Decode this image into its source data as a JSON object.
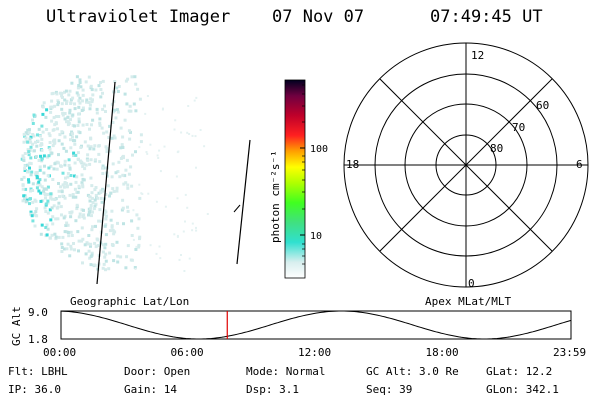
{
  "header": {
    "instrument": "Ultraviolet Imager",
    "date": "07 Nov 07",
    "time": "07:49:45 UT"
  },
  "colorbar": {
    "label": "photon cm⁻²s⁻¹",
    "ticks": [
      "100",
      "10"
    ]
  },
  "polar": {
    "mlt_labels": {
      "top": "12",
      "left": "18",
      "right": "6",
      "bottom": "0"
    },
    "lat_labels": [
      "60",
      "70",
      "80"
    ]
  },
  "orbit": {
    "ylabel": "GC Alt",
    "y_ticks": [
      "9.0",
      "1.8"
    ],
    "left_title": "Geographic Lat/Lon",
    "right_title": "Apex MLat/MLT",
    "x_ticks": [
      "00:00",
      "06:00",
      "12:00",
      "18:00",
      "23:59"
    ],
    "current_time_fraction": 0.326,
    "colors": {
      "marker": "#e00000"
    }
  },
  "status": {
    "row1": [
      {
        "label": "Flt: LBHL"
      },
      {
        "label": "Door: Open"
      },
      {
        "label": "Mode: Normal"
      },
      {
        "label": "GC Alt: 3.0 Re"
      },
      {
        "label": "GLat:  12.2"
      }
    ],
    "row2": [
      {
        "label": "IP: 36.0"
      },
      {
        "label": "Gain: 14"
      },
      {
        "label": "Dsp:    3.1"
      },
      {
        "label": "Seq: 39"
      },
      {
        "label": "GLon: 342.1"
      }
    ]
  }
}
